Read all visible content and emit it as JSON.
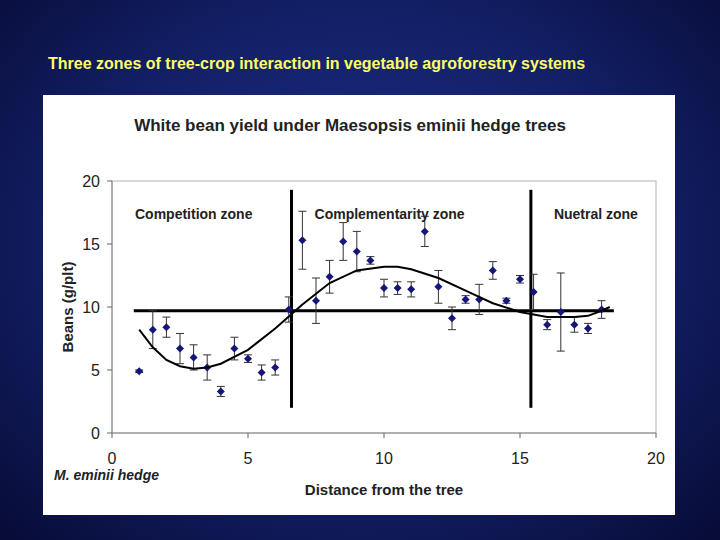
{
  "header": {
    "title": "Three zones of tree-crop interaction in vegetable agroforestry systems"
  },
  "chart_data": {
    "type": "scatter",
    "title": "White bean yield under Maesopsis eminii hedge trees",
    "x_label": "Distance from the tree",
    "y_label": "Beans (g/plt)",
    "x_origin_label": "M. eminii hedge",
    "annotations": [
      "Competition zone",
      "Complementarity zone",
      "Nuetral zone"
    ],
    "xlim": [
      0,
      20
    ],
    "ylim": [
      0,
      20
    ],
    "xticks": [
      0,
      5,
      10,
      15,
      20
    ],
    "yticks": [
      0,
      5,
      10,
      15,
      20
    ],
    "grid": false,
    "reference_lines": {
      "horizontal": {
        "y": 9.7,
        "x": [
          0.8,
          18.45
        ]
      },
      "vertical": [
        {
          "x": 6.6,
          "y": [
            2.0,
            19.3
          ]
        },
        {
          "x": 15.4,
          "y": [
            2.0,
            19.3
          ]
        }
      ]
    },
    "series": [
      {
        "type": "scatter",
        "color": "#15157a",
        "marker": "diamond",
        "x": [
          1.0,
          1.5,
          2.0,
          2.5,
          3.0,
          3.5,
          4.0,
          4.5,
          5.0,
          5.5,
          6.0,
          6.5,
          7.0,
          7.5,
          8.0,
          8.5,
          9.0,
          9.5,
          10.0,
          10.5,
          11.0,
          11.5,
          12.0,
          12.5,
          13.0,
          13.5,
          14.0,
          14.5,
          15.0,
          15.5,
          16.0,
          16.5,
          17.0,
          17.5,
          18.0
        ],
        "values": [
          4.9,
          8.2,
          8.4,
          6.7,
          6.0,
          5.2,
          3.3,
          6.7,
          5.9,
          4.8,
          5.2,
          9.8,
          15.3,
          10.5,
          12.4,
          15.2,
          14.4,
          13.7,
          11.5,
          11.5,
          11.4,
          16.0,
          11.6,
          9.1,
          10.6,
          10.6,
          12.9,
          10.5,
          12.2,
          11.2,
          8.6,
          9.6,
          8.6,
          8.3,
          9.8
        ],
        "errors": [
          0.1,
          1.5,
          0.8,
          1.2,
          1.0,
          1.0,
          0.4,
          0.9,
          0.3,
          0.6,
          0.6,
          1.0,
          2.3,
          1.8,
          1.3,
          1.5,
          1.6,
          0.3,
          0.7,
          0.5,
          0.6,
          1.2,
          1.3,
          0.9,
          0.3,
          1.2,
          0.7,
          0.2,
          0.3,
          1.4,
          0.4,
          3.1,
          0.6,
          0.4,
          0.7
        ]
      },
      {
        "type": "line",
        "color": "#000000",
        "marker": "none",
        "x": [
          1.0,
          1.5,
          2.0,
          2.5,
          3.0,
          3.5,
          4.0,
          5.0,
          6.0,
          7.0,
          8.0,
          9.0,
          10.0,
          10.5,
          11.0,
          12.0,
          13.0,
          14.0,
          15.0,
          16.0,
          17.0,
          17.5,
          18.0,
          18.3
        ],
        "values": [
          8.2,
          6.8,
          5.8,
          5.3,
          5.1,
          5.2,
          5.5,
          6.6,
          8.3,
          10.2,
          11.9,
          12.9,
          13.2,
          13.2,
          13.0,
          12.3,
          11.3,
          10.3,
          9.6,
          9.2,
          9.2,
          9.3,
          9.7,
          10.0
        ]
      }
    ]
  }
}
